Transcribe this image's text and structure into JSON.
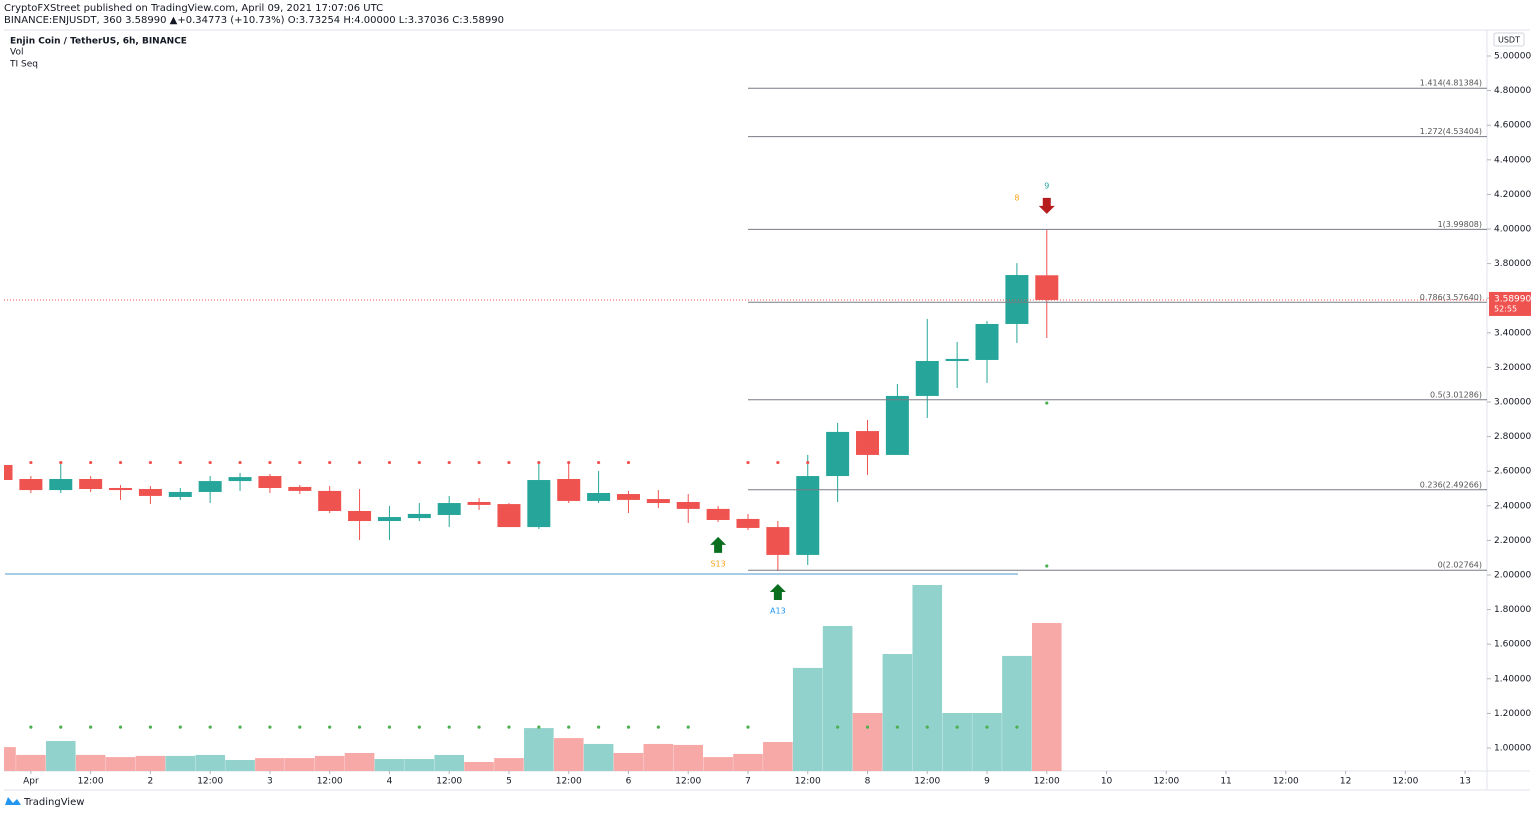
{
  "header": {
    "publisher": "CryptoFXStreet published on TradingView.com, April 09, 2021 17:07:06 UTC",
    "symbol_line": "BINANCE:ENJUSDT, 360  3.58990  ▲+0.34773 (+10.73%)  O:3.73254  H:4.00000  L:3.37036  C:3.58990",
    "legend": [
      "Enjin Coin / TetherUS, 6h, BINANCE",
      "Vol",
      "TI Seq"
    ],
    "currency": "USDT",
    "countdown": "52:55",
    "footer": "TradingView"
  },
  "chart_data": {
    "type": "candlestick",
    "candles": {
      "x": [
        -6,
        0,
        6,
        12,
        18,
        24,
        30,
        36,
        42,
        48,
        54,
        60,
        66,
        72,
        78,
        84,
        90,
        96,
        102,
        108,
        114,
        120,
        126,
        132,
        138,
        144,
        150,
        156,
        162,
        168,
        174,
        180,
        186,
        192,
        198,
        204
      ],
      "open": [
        2.636,
        2.555,
        2.491,
        2.555,
        2.503,
        2.497,
        2.451,
        2.48,
        2.543,
        2.572,
        2.509,
        2.486,
        2.37,
        2.312,
        2.329,
        2.347,
        2.422,
        2.41,
        2.277,
        2.555,
        2.428,
        2.468,
        2.439,
        2.422,
        2.382,
        2.324,
        2.277,
        2.116,
        2.572,
        2.832,
        2.694,
        3.035,
        3.237,
        3.243,
        3.451,
        3.73254
      ],
      "high": [
        2.65,
        2.572,
        2.653,
        2.572,
        2.52,
        2.514,
        2.503,
        2.572,
        2.59,
        2.584,
        2.52,
        2.514,
        2.497,
        2.399,
        2.416,
        2.457,
        2.445,
        2.416,
        2.659,
        2.653,
        2.601,
        2.486,
        2.491,
        2.468,
        2.399,
        2.353,
        2.312,
        2.694,
        2.879,
        2.896,
        3.104,
        3.48,
        3.347,
        3.468,
        3.803,
        4.0
      ],
      "low": [
        2.54,
        2.474,
        2.474,
        2.48,
        2.434,
        2.41,
        2.434,
        2.416,
        2.486,
        2.474,
        2.468,
        2.358,
        2.202,
        2.202,
        2.312,
        2.277,
        2.376,
        2.277,
        2.266,
        2.416,
        2.416,
        2.358,
        2.387,
        2.301,
        2.306,
        2.26,
        2.023,
        2.058,
        2.422,
        2.578,
        2.694,
        2.908,
        3.081,
        3.11,
        3.341,
        3.37036
      ],
      "close": [
        2.549,
        2.491,
        2.555,
        2.497,
        2.491,
        2.457,
        2.48,
        2.543,
        2.566,
        2.503,
        2.486,
        2.37,
        2.312,
        2.335,
        2.353,
        2.416,
        2.405,
        2.277,
        2.549,
        2.428,
        2.474,
        2.434,
        2.416,
        2.382,
        2.318,
        2.272,
        2.116,
        2.572,
        2.827,
        2.694,
        3.035,
        3.237,
        3.249,
        3.451,
        3.734,
        3.5899
      ],
      "up_color": "#26a69a",
      "down_color": "#ef5350"
    },
    "volume": {
      "values": [
        12.2,
        8.2,
        15.3,
        8.2,
        7.1,
        7.7,
        7.7,
        8.2,
        5.6,
        6.6,
        6.6,
        7.7,
        9.2,
        6.1,
        6.1,
        8.2,
        4.6,
        6.6,
        21.9,
        16.8,
        13.8,
        9.2,
        13.8,
        13.3,
        7.1,
        8.7,
        14.8,
        52.6,
        74,
        29.6,
        59.7,
        94.9,
        29.6,
        29.6,
        58.7,
        75.5
      ],
      "lim": [
        0,
        100
      ],
      "up_color": "#92d2cc",
      "down_color": "#f7a9a7"
    },
    "fib_levels": {
      "start_x": 144,
      "levels": [
        {
          "value": 4.81384,
          "label": "1.414(4.81384)"
        },
        {
          "value": 4.53404,
          "label": "1.272(4.53404)"
        },
        {
          "value": 3.99808,
          "label": "1(3.99808)"
        },
        {
          "value": 3.5764,
          "label": "0.786(3.57640)"
        },
        {
          "value": 3.01286,
          "label": "0.5(3.01286)"
        },
        {
          "value": 2.49266,
          "label": "0.236(2.49266)"
        },
        {
          "value": 2.02764,
          "label": "0(2.02764)"
        }
      ]
    },
    "last_price": {
      "value": 3.5899,
      "label": "3.58990"
    },
    "annotations": [
      {
        "text": "S13",
        "x": 138,
        "y": 2.064,
        "color": "#f7a21b",
        "arrow": "up"
      },
      {
        "text": "A13",
        "x": 150,
        "y": 1.792,
        "color": "#2196f3",
        "arrow": "up"
      },
      {
        "text": "9",
        "x": 204,
        "y": 4.249,
        "color": "#26a69a",
        "arrow": "down"
      },
      {
        "text": "8",
        "x": 198,
        "y": 4.18,
        "color": "#f7a21b"
      }
    ],
    "seq_dots_top": {
      "y": 2.65,
      "color": "#ef5350",
      "x": [
        0,
        6,
        12,
        18,
        24,
        30,
        36,
        42,
        48,
        54,
        60,
        66,
        72,
        78,
        84,
        90,
        96,
        102,
        108,
        114,
        120,
        144,
        150,
        156
      ]
    },
    "seq_dots_bottom": {
      "level": 22.4,
      "color": "#4caf50",
      "x": [
        0,
        6,
        12,
        18,
        24,
        30,
        36,
        42,
        48,
        54,
        60,
        66,
        72,
        78,
        84,
        90,
        96,
        102,
        108,
        114,
        120,
        126,
        132,
        144,
        162,
        168,
        174,
        180,
        186,
        192,
        198
      ]
    },
    "extra_dots": {
      "color": "#4caf50",
      "x": [
        204,
        204
      ],
      "y": [
        2.994,
        2.052
      ]
    },
    "xlim": [
      -5.4,
      292.4
    ],
    "xticks": [
      {
        "value": 0,
        "label": "Apr"
      },
      {
        "value": 12,
        "label": "12:00"
      },
      {
        "value": 24,
        "label": "2"
      },
      {
        "value": 36,
        "label": "12:00"
      },
      {
        "value": 48,
        "label": "3"
      },
      {
        "value": 60,
        "label": "12:00"
      },
      {
        "value": 72,
        "label": "4"
      },
      {
        "value": 84,
        "label": "12:00"
      },
      {
        "value": 96,
        "label": "5"
      },
      {
        "value": 108,
        "label": "12:00"
      },
      {
        "value": 120,
        "label": "6"
      },
      {
        "value": 132,
        "label": "12:00"
      },
      {
        "value": 144,
        "label": "7"
      },
      {
        "value": 156,
        "label": "12:00"
      },
      {
        "value": 168,
        "label": "8"
      },
      {
        "value": 180,
        "label": "12:00"
      },
      {
        "value": 192,
        "label": "9"
      },
      {
        "value": 204,
        "label": "12:00"
      },
      {
        "value": 216,
        "label": "10"
      },
      {
        "value": 228,
        "label": "12:00"
      },
      {
        "value": 240,
        "label": "11"
      },
      {
        "value": 252,
        "label": "12:00"
      },
      {
        "value": 264,
        "label": "12"
      },
      {
        "value": 276,
        "label": "12:00"
      },
      {
        "value": 288,
        "label": "13"
      }
    ],
    "ylim": [
      0.867,
      5.133
    ],
    "yticks": [
      {
        "value": 1,
        "label": "1.00000"
      },
      {
        "value": 1.2,
        "label": "1.20000"
      },
      {
        "value": 1.4,
        "label": "1.40000"
      },
      {
        "value": 1.6,
        "label": "1.60000"
      },
      {
        "value": 1.8,
        "label": "1.80000"
      },
      {
        "value": 2,
        "label": "2.00000"
      },
      {
        "value": 2.2,
        "label": "2.20000"
      },
      {
        "value": 2.4,
        "label": "2.40000"
      },
      {
        "value": 2.6,
        "label": "2.60000"
      },
      {
        "value": 2.8,
        "label": "2.80000"
      },
      {
        "value": 3,
        "label": "3.00000"
      },
      {
        "value": 3.2,
        "label": "3.20000"
      },
      {
        "value": 3.4,
        "label": "3.40000"
      },
      {
        "value": 3.6,
        "label": "3.60000"
      },
      {
        "value": 3.8,
        "label": "3.80000"
      },
      {
        "value": 4,
        "label": "4.00000"
      },
      {
        "value": 4.2,
        "label": "4.20000"
      },
      {
        "value": 4.4,
        "label": "4.40000"
      },
      {
        "value": 4.6,
        "label": "4.60000"
      },
      {
        "value": 4.8,
        "label": "4.80000"
      },
      {
        "value": 5,
        "label": "5.00000"
      }
    ]
  }
}
